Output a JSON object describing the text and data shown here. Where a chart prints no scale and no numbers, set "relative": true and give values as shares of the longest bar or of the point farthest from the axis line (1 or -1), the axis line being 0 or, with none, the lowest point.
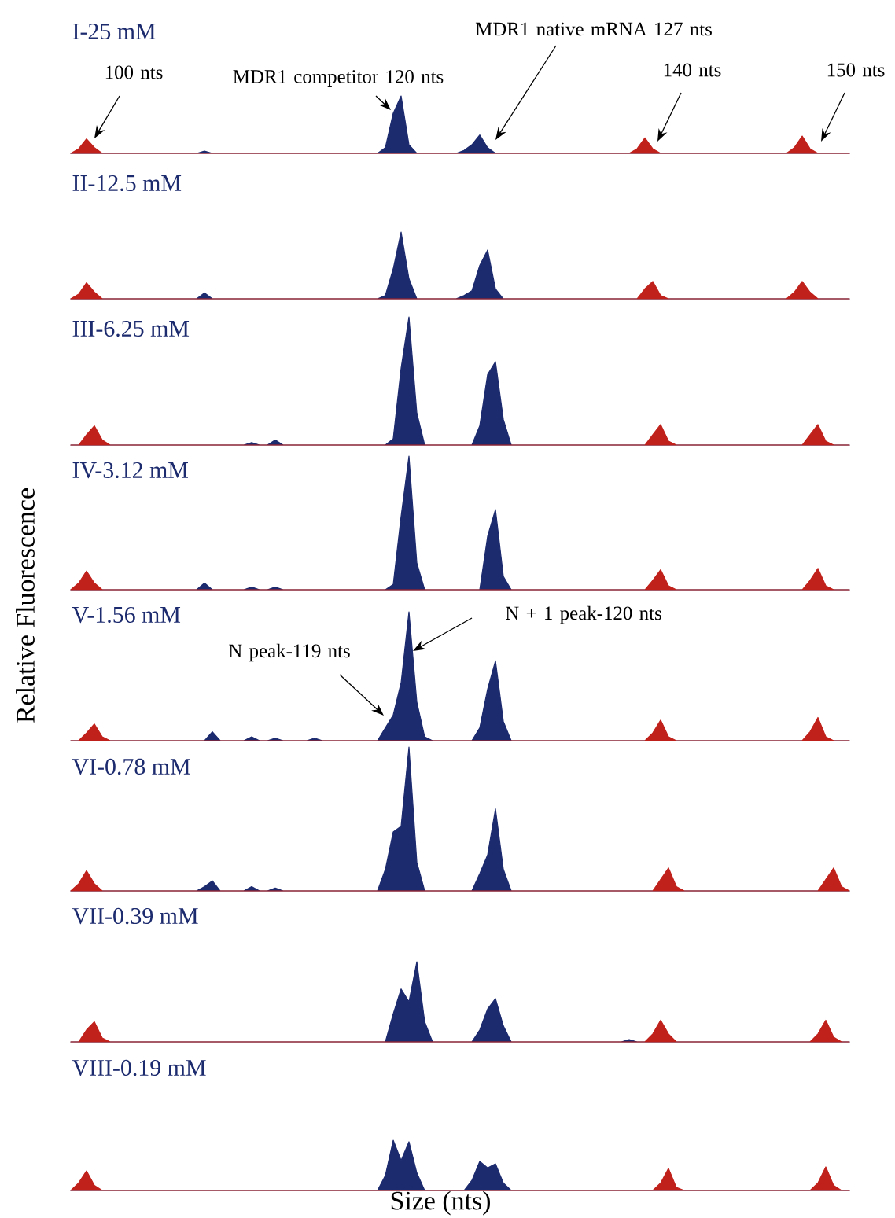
{
  "chart_data": [
    {
      "type": "area",
      "relative": true,
      "title": "I-25 mM",
      "annotations": [
        "100 nts",
        "MDR1 competitor 120 nts",
        "MDR1 native mRNA 127 nts",
        "140 nts",
        "150 nts"
      ],
      "categories": [
        null,
        null,
        null,
        null,
        null,
        null,
        null,
        null,
        null,
        null,
        null,
        null,
        null,
        null,
        null,
        null,
        null,
        null,
        null,
        null,
        null,
        null,
        null,
        null,
        null,
        null,
        null,
        null,
        null,
        null,
        null,
        null,
        null,
        null,
        null,
        null,
        null,
        null,
        null,
        null,
        null,
        null,
        null,
        null,
        null,
        null,
        null,
        null,
        null,
        null,
        null,
        null,
        null,
        null,
        null,
        null,
        null,
        null,
        null,
        null,
        null,
        null,
        null,
        null,
        null,
        null,
        null,
        null,
        null,
        null,
        null,
        null,
        null,
        null,
        null,
        null,
        null,
        null,
        null,
        null,
        null,
        null,
        null,
        null,
        null,
        null,
        null,
        null,
        null,
        null,
        null,
        null,
        null,
        null,
        null,
        null,
        null,
        null,
        null,
        null
      ],
      "series": [
        {
          "color": "#1c2a6e",
          "values": [
            0,
            0,
            0,
            0,
            0,
            0,
            0,
            0,
            0,
            0,
            0,
            0,
            0,
            0,
            0,
            0,
            0,
            0.04,
            0,
            0,
            0,
            0,
            0,
            0,
            0,
            0,
            0,
            0,
            0,
            0,
            0,
            0,
            0,
            0,
            0,
            0,
            0,
            0,
            0,
            0,
            0.1,
            0.7,
            1,
            0.15,
            0,
            0,
            0,
            0,
            0,
            0,
            0.05,
            0.15,
            0.32,
            0.1,
            0,
            0,
            0,
            0,
            0,
            0,
            0,
            0,
            0,
            0,
            0,
            0,
            0,
            0,
            0,
            0,
            0,
            0,
            0,
            0,
            0,
            0,
            0,
            0,
            0,
            0,
            0,
            0,
            0,
            0,
            0,
            0,
            0,
            0,
            0,
            0,
            0,
            0,
            0,
            0,
            0,
            0,
            0,
            0,
            0,
            0
          ]
        },
        {
          "color": "#c0211b",
          "values": [
            0,
            0.08,
            0.25,
            0.1,
            0,
            0,
            0,
            0,
            0,
            0,
            0,
            0,
            0,
            0,
            0,
            0,
            0,
            0,
            0,
            0,
            0,
            0,
            0,
            0,
            0,
            0,
            0,
            0,
            0,
            0,
            0,
            0,
            0,
            0,
            0,
            0,
            0,
            0,
            0,
            0,
            0,
            0,
            0,
            0,
            0,
            0,
            0,
            0,
            0,
            0,
            0,
            0,
            0,
            0,
            0,
            0,
            0,
            0,
            0,
            0,
            0,
            0,
            0,
            0,
            0,
            0,
            0,
            0,
            0,
            0,
            0,
            0,
            0.08,
            0.27,
            0.08,
            0,
            0,
            0,
            0,
            0,
            0,
            0,
            0,
            0,
            0,
            0,
            0,
            0,
            0,
            0,
            0,
            0,
            0.1,
            0.3,
            0.08,
            0,
            0,
            0,
            0,
            0
          ]
        }
      ]
    },
    {
      "type": "area",
      "relative": true,
      "title": "II-12.5 mM",
      "categories": [
        null,
        null,
        null,
        null,
        null,
        null,
        null,
        null,
        null,
        null,
        null,
        null,
        null,
        null,
        null,
        null,
        null,
        null,
        null,
        null,
        null,
        null,
        null,
        null,
        null,
        null,
        null,
        null,
        null,
        null,
        null,
        null,
        null,
        null,
        null,
        null,
        null,
        null,
        null,
        null,
        null,
        null,
        null,
        null,
        null,
        null,
        null,
        null,
        null,
        null,
        null,
        null,
        null,
        null,
        null,
        null,
        null,
        null,
        null,
        null,
        null,
        null,
        null,
        null,
        null,
        null,
        null,
        null,
        null,
        null,
        null,
        null,
        null,
        null,
        null,
        null,
        null,
        null,
        null,
        null,
        null,
        null,
        null,
        null,
        null,
        null,
        null,
        null,
        null,
        null,
        null,
        null,
        null,
        null,
        null,
        null,
        null,
        null,
        null,
        null
      ],
      "series": [
        {
          "color": "#1c2a6e",
          "values": [
            0,
            0,
            0,
            0,
            0,
            0,
            0,
            0,
            0,
            0,
            0,
            0,
            0,
            0,
            0,
            0,
            0,
            0.09,
            0,
            0,
            0,
            0,
            0,
            0,
            0,
            0,
            0,
            0,
            0,
            0,
            0,
            0,
            0,
            0,
            0,
            0,
            0,
            0,
            0,
            0,
            0.05,
            0.45,
            1,
            0.3,
            0,
            0,
            0,
            0,
            0,
            0,
            0.05,
            0.12,
            0.5,
            0.73,
            0.15,
            0,
            0,
            0,
            0,
            0,
            0,
            0,
            0,
            0,
            0,
            0,
            0,
            0,
            0,
            0,
            0,
            0,
            0,
            0,
            0,
            0,
            0,
            0,
            0,
            0,
            0,
            0,
            0,
            0,
            0,
            0,
            0,
            0,
            0,
            0,
            0,
            0,
            0,
            0,
            0,
            0,
            0,
            0,
            0,
            0
          ]
        },
        {
          "color": "#c0211b",
          "values": [
            0,
            0.07,
            0.24,
            0.1,
            0,
            0,
            0,
            0,
            0,
            0,
            0,
            0,
            0,
            0,
            0,
            0,
            0,
            0,
            0,
            0,
            0,
            0,
            0,
            0,
            0,
            0,
            0,
            0,
            0,
            0,
            0,
            0,
            0,
            0,
            0,
            0,
            0,
            0,
            0,
            0,
            0,
            0,
            0,
            0,
            0,
            0,
            0,
            0,
            0,
            0,
            0,
            0,
            0,
            0,
            0,
            0,
            0,
            0,
            0,
            0,
            0,
            0,
            0,
            0,
            0,
            0,
            0,
            0,
            0,
            0,
            0,
            0,
            0,
            0.15,
            0.26,
            0.05,
            0,
            0,
            0,
            0,
            0,
            0,
            0,
            0,
            0,
            0,
            0,
            0,
            0,
            0,
            0,
            0,
            0.1,
            0.26,
            0.1,
            0,
            0,
            0,
            0,
            0
          ]
        }
      ]
    },
    {
      "type": "area",
      "relative": true,
      "title": "III-6.25 mM",
      "categories": [
        null,
        null,
        null,
        null,
        null,
        null,
        null,
        null,
        null,
        null,
        null,
        null,
        null,
        null,
        null,
        null,
        null,
        null,
        null,
        null,
        null,
        null,
        null,
        null,
        null,
        null,
        null,
        null,
        null,
        null,
        null,
        null,
        null,
        null,
        null,
        null,
        null,
        null,
        null,
        null,
        null,
        null,
        null,
        null,
        null,
        null,
        null,
        null,
        null,
        null,
        null,
        null,
        null,
        null,
        null,
        null,
        null,
        null,
        null,
        null,
        null,
        null,
        null,
        null,
        null,
        null,
        null,
        null,
        null,
        null,
        null,
        null,
        null,
        null,
        null,
        null,
        null,
        null,
        null,
        null,
        null,
        null,
        null,
        null,
        null,
        null,
        null,
        null,
        null,
        null,
        null,
        null,
        null,
        null,
        null,
        null,
        null,
        null,
        null,
        null
      ],
      "series": [
        {
          "color": "#1c2a6e",
          "values": [
            0,
            0,
            0,
            0,
            0,
            0,
            0,
            0,
            0,
            0,
            0,
            0,
            0,
            0,
            0,
            0,
            0,
            0,
            0,
            0,
            0,
            0,
            0,
            0.02,
            0,
            0,
            0.04,
            0,
            0,
            0,
            0,
            0,
            0,
            0,
            0,
            0,
            0,
            0,
            0,
            0,
            0,
            0.05,
            0.6,
            1,
            0.25,
            0,
            0,
            0,
            0,
            0,
            0,
            0,
            0.15,
            0.55,
            0.65,
            0.2,
            0,
            0,
            0,
            0,
            0,
            0,
            0,
            0,
            0,
            0,
            0,
            0,
            0,
            0,
            0,
            0,
            0,
            0,
            0,
            0,
            0,
            0,
            0,
            0,
            0,
            0,
            0,
            0,
            0,
            0,
            0,
            0,
            0,
            0,
            0,
            0,
            0,
            0,
            0,
            0,
            0,
            0,
            0,
            0
          ]
        },
        {
          "color": "#c0211b",
          "values": [
            0,
            0,
            0.08,
            0.15,
            0.04,
            0,
            0,
            0,
            0,
            0,
            0,
            0,
            0,
            0,
            0,
            0,
            0,
            0,
            0,
            0,
            0,
            0,
            0,
            0,
            0,
            0,
            0,
            0,
            0,
            0,
            0,
            0,
            0,
            0,
            0,
            0,
            0,
            0,
            0,
            0,
            0,
            0,
            0,
            0,
            0,
            0,
            0,
            0,
            0,
            0,
            0,
            0,
            0,
            0,
            0,
            0,
            0,
            0,
            0,
            0,
            0,
            0,
            0,
            0,
            0,
            0,
            0,
            0,
            0,
            0,
            0,
            0,
            0,
            0,
            0.08,
            0.16,
            0.03,
            0,
            0,
            0,
            0,
            0,
            0,
            0,
            0,
            0,
            0,
            0,
            0,
            0,
            0,
            0,
            0,
            0,
            0.08,
            0.16,
            0.03,
            0,
            0,
            0
          ]
        }
      ]
    },
    {
      "type": "area",
      "relative": true,
      "title": "IV-3.12 mM",
      "categories": [
        null,
        null,
        null,
        null,
        null,
        null,
        null,
        null,
        null,
        null,
        null,
        null,
        null,
        null,
        null,
        null,
        null,
        null,
        null,
        null,
        null,
        null,
        null,
        null,
        null,
        null,
        null,
        null,
        null,
        null,
        null,
        null,
        null,
        null,
        null,
        null,
        null,
        null,
        null,
        null,
        null,
        null,
        null,
        null,
        null,
        null,
        null,
        null,
        null,
        null,
        null,
        null,
        null,
        null,
        null,
        null,
        null,
        null,
        null,
        null,
        null,
        null,
        null,
        null,
        null,
        null,
        null,
        null,
        null,
        null,
        null,
        null,
        null,
        null,
        null,
        null,
        null,
        null,
        null,
        null,
        null,
        null,
        null,
        null,
        null,
        null,
        null,
        null,
        null,
        null,
        null,
        null,
        null,
        null,
        null,
        null,
        null,
        null,
        null,
        null
      ],
      "series": [
        {
          "color": "#1c2a6e",
          "values": [
            0,
            0,
            0,
            0,
            0,
            0,
            0,
            0,
            0,
            0,
            0,
            0,
            0,
            0,
            0,
            0,
            0,
            0.05,
            0,
            0,
            0,
            0,
            0,
            0.02,
            0,
            0,
            0.02,
            0,
            0,
            0,
            0,
            0,
            0,
            0,
            0,
            0,
            0,
            0,
            0,
            0,
            0,
            0.04,
            0.55,
            1,
            0.2,
            0,
            0,
            0,
            0,
            0,
            0,
            0,
            0,
            0.4,
            0.6,
            0.1,
            0,
            0,
            0,
            0,
            0,
            0,
            0,
            0,
            0,
            0,
            0,
            0,
            0,
            0,
            0,
            0,
            0,
            0,
            0,
            0,
            0,
            0,
            0,
            0,
            0,
            0,
            0,
            0,
            0,
            0,
            0,
            0,
            0,
            0,
            0,
            0,
            0,
            0,
            0,
            0,
            0,
            0,
            0,
            0
          ]
        },
        {
          "color": "#c0211b",
          "values": [
            0,
            0.05,
            0.14,
            0.05,
            0,
            0,
            0,
            0,
            0,
            0,
            0,
            0,
            0,
            0,
            0,
            0,
            0,
            0,
            0,
            0,
            0,
            0,
            0,
            0,
            0,
            0,
            0,
            0,
            0,
            0,
            0,
            0,
            0,
            0,
            0,
            0,
            0,
            0,
            0,
            0,
            0,
            0,
            0,
            0,
            0,
            0,
            0,
            0,
            0,
            0,
            0,
            0,
            0,
            0,
            0,
            0,
            0,
            0,
            0,
            0,
            0,
            0,
            0,
            0,
            0,
            0,
            0,
            0,
            0,
            0,
            0,
            0,
            0,
            0,
            0.07,
            0.15,
            0.03,
            0,
            0,
            0,
            0,
            0,
            0,
            0,
            0,
            0,
            0,
            0,
            0,
            0,
            0,
            0,
            0,
            0,
            0.07,
            0.16,
            0.03,
            0,
            0,
            0
          ]
        }
      ]
    },
    {
      "type": "area",
      "relative": true,
      "title": "V-1.56 mM",
      "ylabel": "Relative Fluorescence",
      "annotations": [
        "N peak-119 nts",
        "N + 1 peak-120 nts"
      ],
      "categories": [
        null,
        null,
        null,
        null,
        null,
        null,
        null,
        null,
        null,
        null,
        null,
        null,
        null,
        null,
        null,
        null,
        null,
        null,
        null,
        null,
        null,
        null,
        null,
        null,
        null,
        null,
        null,
        null,
        null,
        null,
        null,
        null,
        null,
        null,
        null,
        null,
        null,
        null,
        null,
        null,
        null,
        null,
        null,
        null,
        null,
        null,
        null,
        null,
        null,
        null,
        null,
        null,
        null,
        null,
        null,
        null,
        null,
        null,
        null,
        null,
        null,
        null,
        null,
        null,
        null,
        null,
        null,
        null,
        null,
        null,
        null,
        null,
        null,
        null,
        null,
        null,
        null,
        null,
        null,
        null,
        null,
        null,
        null,
        null,
        null,
        null,
        null,
        null,
        null,
        null,
        null,
        null,
        null,
        null,
        null,
        null,
        null,
        null,
        null,
        null
      ],
      "series": [
        {
          "color": "#1c2a6e",
          "values": [
            0,
            0,
            0,
            0,
            0,
            0,
            0,
            0,
            0,
            0,
            0,
            0,
            0,
            0,
            0,
            0,
            0,
            0,
            0.07,
            0,
            0,
            0,
            0,
            0.03,
            0,
            0,
            0.02,
            0,
            0,
            0,
            0,
            0.02,
            0,
            0,
            0,
            0,
            0,
            0,
            0,
            0,
            0.1,
            0.2,
            0.45,
            1,
            0.3,
            0.03,
            0,
            0,
            0,
            0,
            0,
            0,
            0.1,
            0.4,
            0.62,
            0.15,
            0,
            0,
            0,
            0,
            0,
            0,
            0,
            0,
            0,
            0,
            0,
            0,
            0,
            0,
            0,
            0,
            0,
            0,
            0,
            0,
            0,
            0,
            0,
            0,
            0,
            0,
            0,
            0,
            0,
            0,
            0,
            0,
            0,
            0,
            0,
            0,
            0,
            0,
            0,
            0,
            0,
            0,
            0,
            0
          ]
        },
        {
          "color": "#c0211b",
          "values": [
            0,
            0,
            0.06,
            0.13,
            0.03,
            0,
            0,
            0,
            0,
            0,
            0,
            0,
            0,
            0,
            0,
            0,
            0,
            0,
            0,
            0,
            0,
            0,
            0,
            0,
            0,
            0,
            0,
            0,
            0,
            0,
            0,
            0,
            0,
            0,
            0,
            0,
            0,
            0,
            0,
            0,
            0,
            0,
            0,
            0,
            0,
            0,
            0,
            0,
            0,
            0,
            0,
            0,
            0,
            0,
            0,
            0,
            0,
            0,
            0,
            0,
            0,
            0,
            0,
            0,
            0,
            0,
            0,
            0,
            0,
            0,
            0,
            0,
            0,
            0,
            0.06,
            0.16,
            0.03,
            0,
            0,
            0,
            0,
            0,
            0,
            0,
            0,
            0,
            0,
            0,
            0,
            0,
            0,
            0,
            0,
            0,
            0.07,
            0.18,
            0.03,
            0,
            0,
            0
          ]
        }
      ]
    },
    {
      "type": "area",
      "relative": true,
      "title": "VI-0.78 mM",
      "categories": [
        null,
        null,
        null,
        null,
        null,
        null,
        null,
        null,
        null,
        null,
        null,
        null,
        null,
        null,
        null,
        null,
        null,
        null,
        null,
        null,
        null,
        null,
        null,
        null,
        null,
        null,
        null,
        null,
        null,
        null,
        null,
        null,
        null,
        null,
        null,
        null,
        null,
        null,
        null,
        null,
        null,
        null,
        null,
        null,
        null,
        null,
        null,
        null,
        null,
        null,
        null,
        null,
        null,
        null,
        null,
        null,
        null,
        null,
        null,
        null,
        null,
        null,
        null,
        null,
        null,
        null,
        null,
        null,
        null,
        null,
        null,
        null,
        null,
        null,
        null,
        null,
        null,
        null,
        null,
        null,
        null,
        null,
        null,
        null,
        null,
        null,
        null,
        null,
        null,
        null,
        null,
        null,
        null,
        null,
        null,
        null,
        null,
        null,
        null,
        null
      ],
      "series": [
        {
          "color": "#1c2a6e",
          "values": [
            0,
            0,
            0,
            0,
            0,
            0,
            0,
            0,
            0,
            0,
            0,
            0,
            0,
            0,
            0,
            0,
            0,
            0.03,
            0.07,
            0,
            0,
            0,
            0,
            0.03,
            0,
            0,
            0.02,
            0,
            0,
            0,
            0,
            0,
            0,
            0,
            0,
            0,
            0,
            0,
            0,
            0,
            0.15,
            0.41,
            0.45,
            1,
            0.2,
            0,
            0,
            0,
            0,
            0,
            0,
            0,
            0.12,
            0.25,
            0.57,
            0.15,
            0,
            0,
            0,
            0,
            0,
            0,
            0,
            0,
            0,
            0,
            0,
            0,
            0,
            0,
            0,
            0,
            0,
            0,
            0,
            0,
            0,
            0,
            0,
            0,
            0,
            0,
            0,
            0,
            0,
            0,
            0,
            0,
            0,
            0,
            0,
            0,
            0,
            0,
            0,
            0,
            0,
            0,
            0,
            0
          ]
        },
        {
          "color": "#c0211b",
          "values": [
            0,
            0.05,
            0.14,
            0.05,
            0,
            0,
            0,
            0,
            0,
            0,
            0,
            0,
            0,
            0,
            0,
            0,
            0,
            0,
            0,
            0,
            0,
            0,
            0,
            0,
            0,
            0,
            0,
            0,
            0,
            0,
            0,
            0,
            0,
            0,
            0,
            0,
            0,
            0,
            0,
            0,
            0,
            0,
            0,
            0,
            0,
            0,
            0,
            0,
            0,
            0,
            0,
            0,
            0,
            0,
            0,
            0,
            0,
            0,
            0,
            0,
            0,
            0,
            0,
            0,
            0,
            0,
            0,
            0,
            0,
            0,
            0,
            0,
            0,
            0,
            0,
            0.08,
            0.16,
            0.03,
            0,
            0,
            0,
            0,
            0,
            0,
            0,
            0,
            0,
            0,
            0,
            0,
            0,
            0,
            0,
            0,
            0,
            0,
            0.08,
            0.16,
            0.03,
            0
          ]
        }
      ]
    },
    {
      "type": "area",
      "relative": true,
      "title": "VII-0.39 mM",
      "categories": [
        null,
        null,
        null,
        null,
        null,
        null,
        null,
        null,
        null,
        null,
        null,
        null,
        null,
        null,
        null,
        null,
        null,
        null,
        null,
        null,
        null,
        null,
        null,
        null,
        null,
        null,
        null,
        null,
        null,
        null,
        null,
        null,
        null,
        null,
        null,
        null,
        null,
        null,
        null,
        null,
        null,
        null,
        null,
        null,
        null,
        null,
        null,
        null,
        null,
        null,
        null,
        null,
        null,
        null,
        null,
        null,
        null,
        null,
        null,
        null,
        null,
        null,
        null,
        null,
        null,
        null,
        null,
        null,
        null,
        null,
        null,
        null,
        null,
        null,
        null,
        null,
        null,
        null,
        null,
        null,
        null,
        null,
        null,
        null,
        null,
        null,
        null,
        null,
        null,
        null,
        null,
        null,
        null,
        null,
        null,
        null,
        null,
        null,
        null,
        null
      ],
      "series": [
        {
          "color": "#1c2a6e",
          "values": [
            0,
            0,
            0,
            0,
            0,
            0,
            0,
            0,
            0,
            0,
            0,
            0,
            0,
            0,
            0,
            0,
            0,
            0,
            0,
            0,
            0,
            0,
            0,
            0,
            0,
            0,
            0,
            0,
            0,
            0,
            0,
            0,
            0,
            0,
            0,
            0,
            0,
            0,
            0,
            0,
            0,
            0.35,
            0.66,
            0.5,
            1,
            0.25,
            0,
            0,
            0,
            0,
            0,
            0,
            0.15,
            0.41,
            0.54,
            0.2,
            0,
            0,
            0,
            0,
            0,
            0,
            0,
            0,
            0,
            0,
            0,
            0,
            0,
            0,
            0,
            0.03,
            0,
            0,
            0,
            0,
            0,
            0,
            0,
            0,
            0,
            0,
            0,
            0,
            0,
            0,
            0,
            0,
            0,
            0,
            0,
            0,
            0,
            0,
            0,
            0,
            0,
            0,
            0,
            0
          ]
        },
        {
          "color": "#c0211b",
          "values": [
            0,
            0,
            0.15,
            0.25,
            0.05,
            0,
            0,
            0,
            0,
            0,
            0,
            0,
            0,
            0,
            0,
            0,
            0,
            0,
            0,
            0,
            0,
            0,
            0,
            0,
            0,
            0,
            0,
            0,
            0,
            0,
            0,
            0,
            0,
            0,
            0,
            0,
            0,
            0,
            0,
            0,
            0,
            0,
            0,
            0,
            0,
            0,
            0,
            0,
            0,
            0,
            0,
            0,
            0,
            0,
            0,
            0,
            0,
            0,
            0,
            0,
            0,
            0,
            0,
            0,
            0,
            0,
            0,
            0,
            0,
            0,
            0,
            0,
            0,
            0,
            0.1,
            0.27,
            0.1,
            0,
            0,
            0,
            0,
            0,
            0,
            0,
            0,
            0,
            0,
            0,
            0,
            0,
            0,
            0,
            0,
            0,
            0,
            0.1,
            0.27,
            0.06,
            0,
            0
          ]
        }
      ]
    },
    {
      "type": "area",
      "relative": true,
      "title": "VIII-0.19 mM",
      "xlabel": "Size (nts)",
      "categories": [
        null,
        null,
        null,
        null,
        null,
        null,
        null,
        null,
        null,
        null,
        null,
        null,
        null,
        null,
        null,
        null,
        null,
        null,
        null,
        null,
        null,
        null,
        null,
        null,
        null,
        null,
        null,
        null,
        null,
        null,
        null,
        null,
        null,
        null,
        null,
        null,
        null,
        null,
        null,
        null,
        null,
        null,
        null,
        null,
        null,
        null,
        null,
        null,
        null,
        null,
        null,
        null,
        null,
        null,
        null,
        null,
        null,
        null,
        null,
        null,
        null,
        null,
        null,
        null,
        null,
        null,
        null,
        null,
        null,
        null,
        null,
        null,
        null,
        null,
        null,
        null,
        null,
        null,
        null,
        null,
        null,
        null,
        null,
        null,
        null,
        null,
        null,
        null,
        null,
        null,
        null,
        null,
        null,
        null,
        null,
        null,
        null,
        null,
        null,
        null
      ],
      "series": [
        {
          "color": "#1c2a6e",
          "values": [
            0,
            0,
            0,
            0,
            0,
            0,
            0,
            0,
            0,
            0,
            0,
            0,
            0,
            0,
            0,
            0,
            0,
            0,
            0,
            0,
            0,
            0,
            0,
            0,
            0,
            0,
            0,
            0,
            0,
            0,
            0,
            0,
            0,
            0,
            0,
            0,
            0,
            0,
            0,
            0,
            0.3,
            1,
            0.6,
            0.97,
            0.35,
            0,
            0,
            0,
            0,
            0,
            0,
            0.2,
            0.58,
            0.45,
            0.53,
            0.15,
            0,
            0,
            0,
            0,
            0,
            0,
            0,
            0,
            0,
            0,
            0,
            0,
            0,
            0,
            0,
            0,
            0,
            0,
            0,
            0,
            0,
            0,
            0,
            0,
            0,
            0,
            0,
            0,
            0,
            0,
            0,
            0,
            0,
            0,
            0,
            0,
            0,
            0,
            0,
            0,
            0,
            0,
            0,
            0
          ]
        },
        {
          "color": "#c0211b",
          "values": [
            0,
            0.15,
            0.39,
            0.1,
            0,
            0,
            0,
            0,
            0,
            0,
            0,
            0,
            0,
            0,
            0,
            0,
            0,
            0,
            0,
            0,
            0,
            0,
            0,
            0,
            0,
            0,
            0,
            0,
            0,
            0,
            0,
            0,
            0,
            0,
            0,
            0,
            0,
            0,
            0,
            0,
            0,
            0,
            0,
            0,
            0,
            0,
            0,
            0,
            0,
            0,
            0,
            0,
            0,
            0,
            0,
            0,
            0,
            0,
            0,
            0,
            0,
            0,
            0,
            0,
            0,
            0,
            0,
            0,
            0,
            0,
            0,
            0,
            0,
            0,
            0,
            0.15,
            0.44,
            0.06,
            0,
            0,
            0,
            0,
            0,
            0,
            0,
            0,
            0,
            0,
            0,
            0,
            0,
            0,
            0,
            0,
            0,
            0.15,
            0.47,
            0.1,
            0,
            0
          ]
        }
      ]
    }
  ]
}
